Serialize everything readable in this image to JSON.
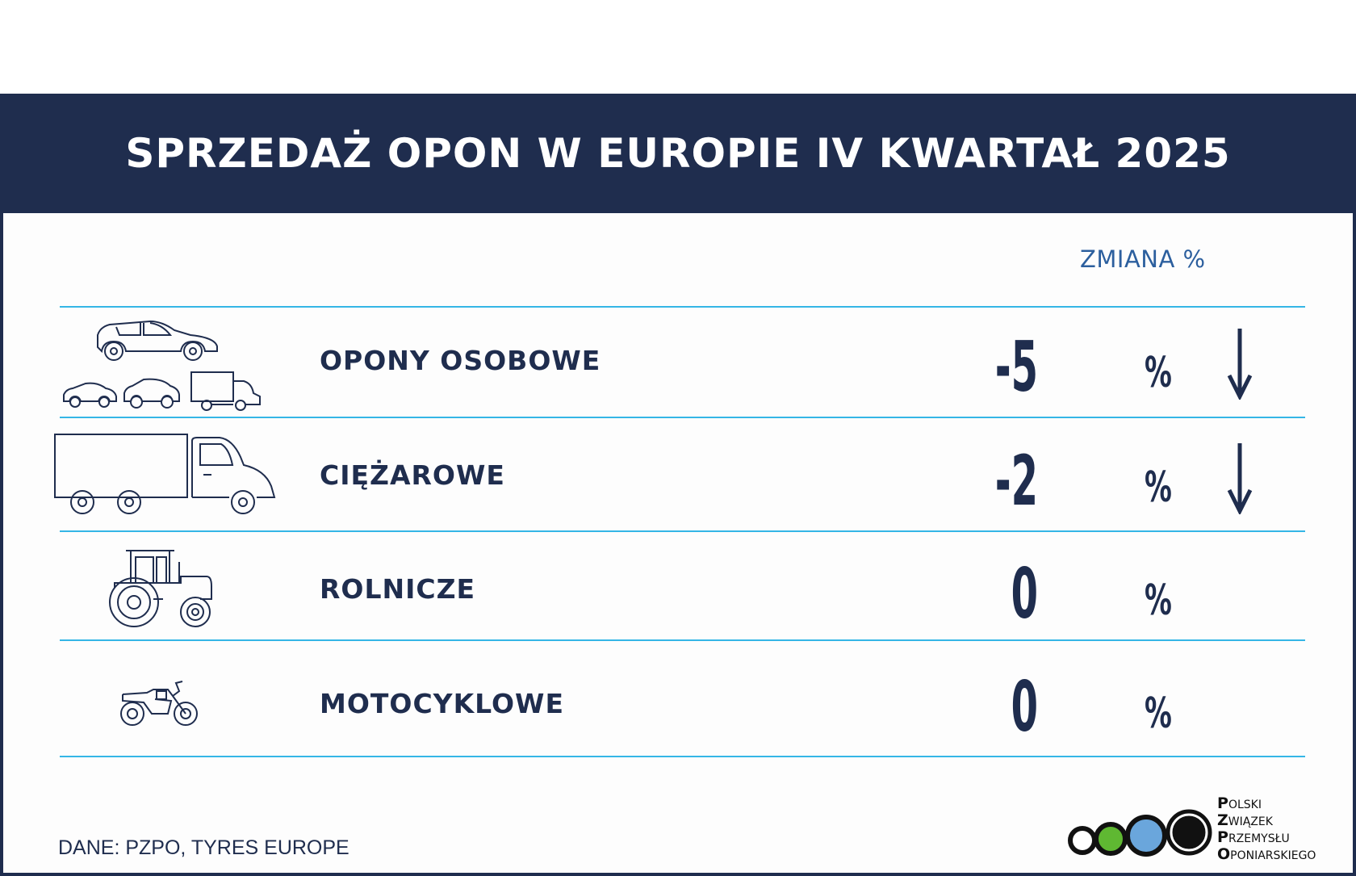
{
  "title": "SPRZEDAŻ OPON W EUROPIE IV KWARTAŁ 2025",
  "column_header": "ZMIANA %",
  "rows": [
    {
      "label": "OPONY OSOBOWE",
      "value": "-5",
      "unit": "%",
      "trend": "down",
      "icon": "cars-and-van-icon"
    },
    {
      "label": "CIĘŻAROWE",
      "value": "-2",
      "unit": "%",
      "trend": "down",
      "icon": "truck-icon"
    },
    {
      "label": "ROLNICZE",
      "value": "0",
      "unit": "%",
      "trend": "none",
      "icon": "tractor-icon"
    },
    {
      "label": "MOTOCYKLOWE",
      "value": "0",
      "unit": "%",
      "trend": "none",
      "icon": "motorcycle-icon"
    }
  ],
  "source": "DANE: PZPO, TYRES EUROPE",
  "logo": {
    "lines": [
      {
        "initial": "P",
        "rest": "OLSKI"
      },
      {
        "initial": "Z",
        "rest": "WIĄZEK"
      },
      {
        "initial": "P",
        "rest": "RZEMYSŁU"
      },
      {
        "initial": "O",
        "rest": "PONIARSKIEGO"
      }
    ],
    "circle_colors": [
      "#ffffff",
      "#5fb832",
      "#6aa6dc",
      "#111111"
    ]
  },
  "colors": {
    "navy": "#1f2d4e",
    "accent_line": "#35b6e6",
    "header_text": "#2c5f9e"
  }
}
